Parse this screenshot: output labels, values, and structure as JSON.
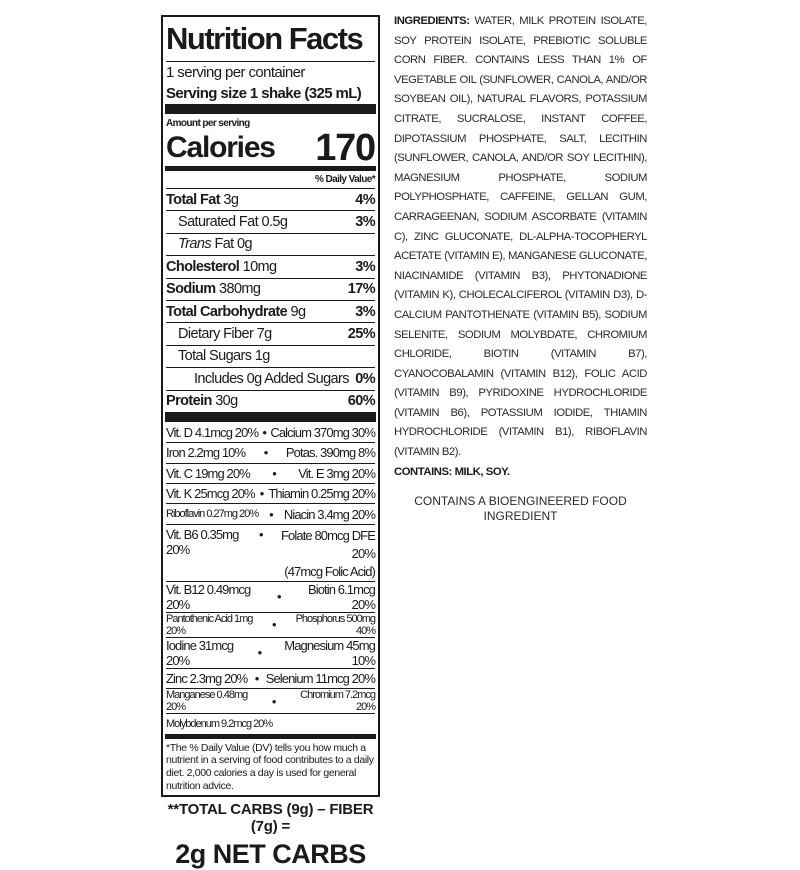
{
  "label": {
    "title": "Nutrition Facts",
    "servings": "1 serving per container",
    "serving_size": "Serving size 1 shake (325 mL)",
    "amount_per_serving": "Amount per serving",
    "calories_label": "Calories",
    "calories": "170",
    "dv_header": "% Daily Value*",
    "nutrients": [
      {
        "name": "Total Fat",
        "amount": "3g",
        "dv": "4%",
        "bold": true,
        "indent": 0
      },
      {
        "name": "Saturated Fat",
        "amount": "0.5g",
        "dv": "3%",
        "bold": false,
        "indent": 1
      },
      {
        "name": "Trans",
        "amount": "Fat 0g",
        "dv": "",
        "bold": false,
        "indent": 1
      },
      {
        "name": "Cholesterol",
        "amount": "10mg",
        "dv": "3%",
        "bold": true,
        "indent": 0
      },
      {
        "name": "Sodium",
        "amount": "380mg",
        "dv": "17%",
        "bold": true,
        "indent": 0
      },
      {
        "name": "Total Carbohydrate",
        "amount": "9g",
        "dv": "3%",
        "bold": true,
        "indent": 0
      },
      {
        "name": "Dietary Fiber",
        "amount": "7g",
        "dv": "25%",
        "bold": false,
        "indent": 1
      },
      {
        "name": "Total Sugars",
        "amount": "1g",
        "dv": "",
        "bold": false,
        "indent": 1
      },
      {
        "name": "Includes 0g Added Sugars",
        "amount": "",
        "dv": "0%",
        "bold": false,
        "indent": 2
      },
      {
        "name": "Protein",
        "amount": "30g",
        "dv": "60%",
        "bold": true,
        "indent": 0
      }
    ],
    "vitamins": [
      {
        "left": "Vit. D 4.1mcg 20%",
        "right": "Calcium 370mg 30%"
      },
      {
        "left": "Iron 2.2mg 10%",
        "right": "Potas. 390mg 8%"
      },
      {
        "left": "Vit. C 19mg 20%",
        "right": "Vit. E 3mg 20%"
      },
      {
        "left": "Vit. K 25mcg 20%",
        "right": "Thiamin 0.25mg 20%"
      },
      {
        "left": "Riboflavin 0.27mg 20%",
        "right": "Niacin 3.4mg 20%"
      },
      {
        "left": "Vit. B6 0.35mg 20%",
        "right": "Folate 80mcg DFE 20%",
        "right2": "(47mcg Folic Acid)"
      },
      {
        "left": "Vit. B12 0.49mcg 20%",
        "right": "Biotin 6.1mcg 20%"
      },
      {
        "left": "Pantothenic Acid 1mg 20%",
        "right": "Phosphorus 500mg 40%"
      },
      {
        "left": "Iodine 31mcg 20%",
        "right": "Magnesium 45mg 10%"
      },
      {
        "left": "Zinc 2.3mg 20%",
        "right": "Selenium 11mcg 20%"
      },
      {
        "left": "Manganese 0.48mg 20%",
        "right": "Chromium 7.2mcg 20%"
      },
      {
        "left": "Molybdenum 9.2mcg 20%",
        "right": ""
      }
    ],
    "footnote": "*The % Daily Value (DV) tells you how much a nutrient in a serving of food contributes to a daily diet. 2,000 calories a day is used for general nutrition advice."
  },
  "net_carbs": {
    "formula": "**TOTAL CARBS (9g) – FIBER (7g) =",
    "result": "2g NET CARBS"
  },
  "ingredients": {
    "label": "INGREDIENTS:",
    "text": "WATER, MILK PROTEIN ISOLATE, SOY PROTEIN ISOLATE, PREBIOTIC SOLUBLE CORN FIBER. CONTAINS LESS THAN 1% OF VEGETABLE OIL (SUNFLOWER, CANOLA, AND/OR SOYBEAN OIL), NATURAL FLAVORS, POTASSIUM CITRATE, SUCRALOSE, INSTANT COFFEE, DIPOTASSIUM PHOSPHATE, SALT, LECITHIN (SUNFLOWER, CANOLA, AND/OR SOY LECITHIN), MAGNESIUM PHOSPHATE, SODIUM POLYPHOSPHATE, CAFFEINE, GELLAN GUM, CARRAGEENAN, SODIUM ASCORBATE (VITAMIN C), ZINC GLUCONATE, DL-ALPHA-TOCOPHERYL ACETATE (VITAMIN E), MANGANESE GLUCONATE, NIACINAMIDE (VITAMIN B3), PHYTONADIONE (VITAMIN K), CHOLECALCIFEROL (VITAMIN D3), D-CALCIUM PANTOTHENATE (VITAMIN B5), SODIUM SELENITE, SODIUM MOLYBDATE, CHROMIUM CHLORIDE, BIOTIN (VITAMIN B7), CYANOCOBALAMIN (VITAMIN B12), FOLIC ACID (VITAMIN B9), PYRIDOXINE HYDROCHLORIDE (VITAMIN B6), POTASSIUM IODIDE, THIAMIN HYDROCHLORIDE (VITAMIN B1), RIBOFLAVIN (VITAMIN B2).",
    "contains_label": "CONTAINS:",
    "contains": "MILK, SOY.",
    "bioengineered": "CONTAINS A BIOENGINEERED FOOD INGREDIENT"
  }
}
